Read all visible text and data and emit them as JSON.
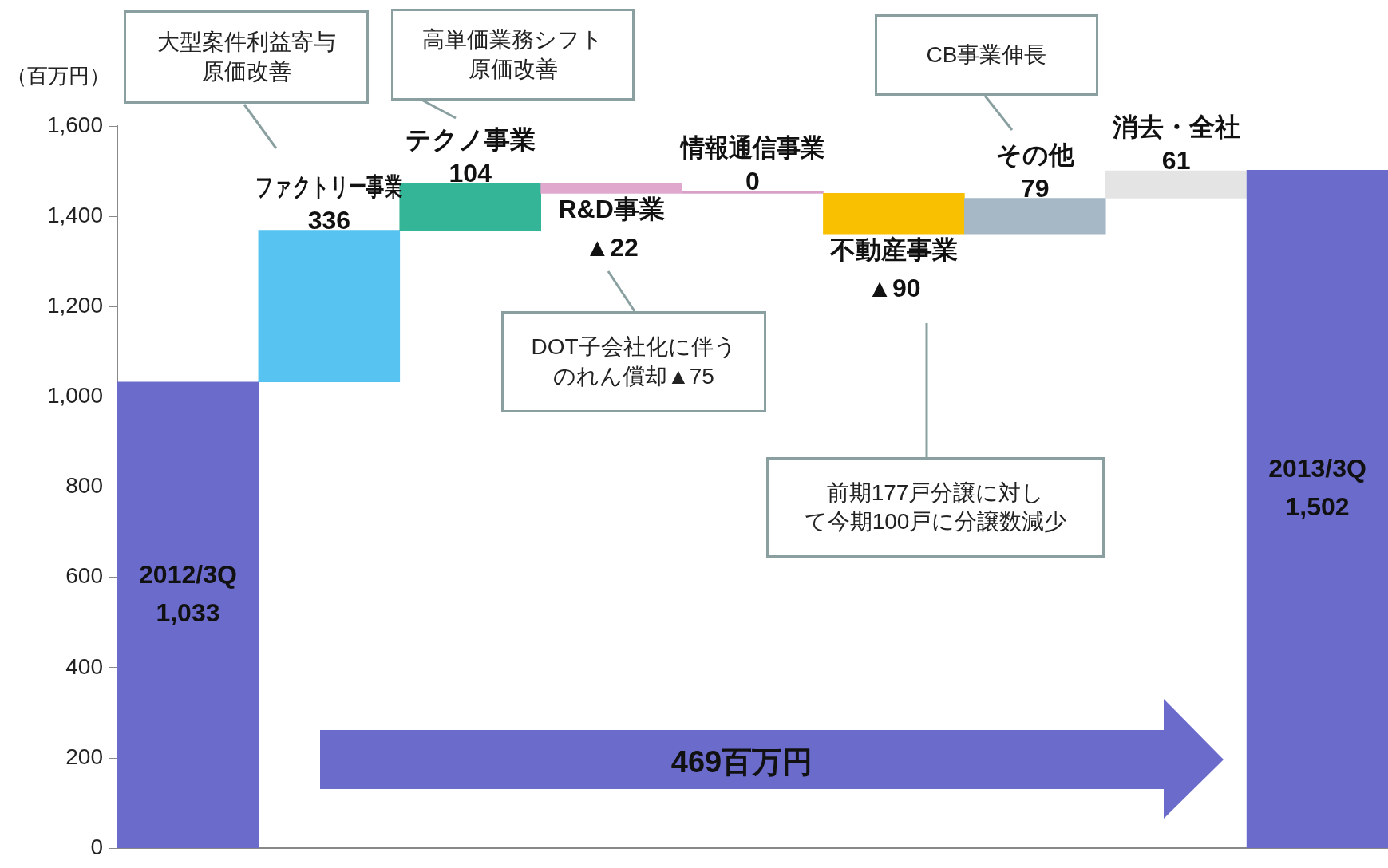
{
  "chart_data": {
    "type": "bar",
    "ylabel": "（百万円）",
    "categories": [
      "2012/3Q",
      "ファクトリー事業",
      "テクノ事業",
      "R&D事業",
      "情報通信事業",
      "不動産事業",
      "その他",
      "消去・全社",
      "2013/3Q"
    ],
    "values": [
      1033,
      336,
      104,
      -22,
      0,
      -90,
      79,
      61,
      1502
    ],
    "base": [
      0,
      1033,
      1369,
      1473,
      1451,
      1451,
      1361,
      1440,
      0
    ],
    "colors": [
      "#6b6bcc",
      "#56c3f0",
      "#35b597",
      "#e0a8cc",
      "#d8a0c8",
      "#f8c000",
      "#a6b8c6",
      "#e4e4e4",
      "#6b6bcc"
    ],
    "value_labels": [
      "1,033",
      "336",
      "104",
      "▲22",
      "0",
      "▲90",
      "79",
      "61",
      "1,502"
    ],
    "ylim": [
      0,
      1600
    ],
    "yticks": [
      0,
      200,
      400,
      600,
      800,
      {
        "value": 1000,
        "label": "1,000"
      },
      {
        "value": 1200,
        "label": "1,200"
      },
      {
        "value": 1400,
        "label": "1,400"
      },
      {
        "value": 1600,
        "label": "1,600"
      }
    ],
    "grid": false,
    "legend": false,
    "tick_labels": "y",
    "annotations": [
      "大型案件利益寄与原価改善",
      "高単価業務シフト原価改善",
      "DOT子会社化に伴うのれん償却▲75",
      "前期177戸分譲に対して今期100戸に分譲数減少",
      "CB事業伸長",
      "469百万円"
    ]
  }
}
